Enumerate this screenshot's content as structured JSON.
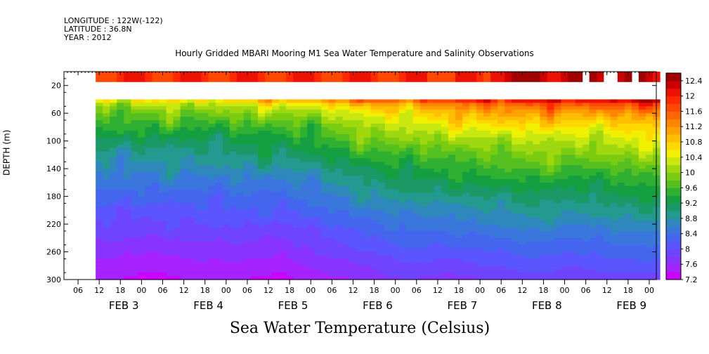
{
  "meta": {
    "longitude": "LONGITUDE : 122W(-122)",
    "latitude": "LATITUDE : 36.8N",
    "year": "YEAR : 2012"
  },
  "chart_data": {
    "type": "heatmap",
    "title": "Hourly Gridded MBARI Mooring M1 Sea Water Temperature and Salinity Observations",
    "xlabel": "Sea Water Temperature (Celsius)",
    "ylabel": "DEPTH (m)",
    "ylim": [
      300,
      0
    ],
    "y_ticks": [
      20,
      60,
      100,
      140,
      180,
      220,
      260,
      300
    ],
    "x_hour_ticks": [
      "06",
      "12",
      "18",
      "00",
      "06",
      "12",
      "18",
      "00",
      "06",
      "12",
      "18",
      "00",
      "06",
      "12",
      "18",
      "00",
      "06",
      "12",
      "18",
      "00",
      "06",
      "12",
      "18",
      "00",
      "06",
      "12",
      "18",
      "00"
    ],
    "x_day_labels": [
      "FEB  3",
      "FEB  4",
      "FEB  5",
      "FEB  6",
      "FEB  7",
      "FEB  8",
      "FEB  9"
    ],
    "x_range_hours": [
      "2012-02-03 02:00",
      "2012-02-10 02:00"
    ],
    "data_start_hours": 9,
    "colorbar": {
      "ticks": [
        "12.4",
        "12",
        "11.6",
        "11.2",
        "10.8",
        "10.4",
        "10",
        "9.6",
        "9.2",
        "8.8",
        "8.4",
        "8",
        "7.6",
        "7.2"
      ],
      "levels": [
        7.2,
        7.4,
        7.6,
        7.8,
        8.0,
        8.2,
        8.4,
        8.6,
        8.8,
        9.0,
        9.2,
        9.4,
        9.6,
        9.8,
        10.0,
        10.2,
        10.4,
        10.6,
        10.8,
        11.0,
        11.2,
        11.4,
        11.6,
        11.8,
        12.0,
        12.2,
        12.4,
        12.6
      ],
      "colors": [
        "#cc00ff",
        "#a622ff",
        "#8833ff",
        "#6e44ff",
        "#5a55ff",
        "#4466ee",
        "#3a77dd",
        "#2f88bb",
        "#23998f",
        "#1a9966",
        "#14a040",
        "#30b030",
        "#55c020",
        "#7acc10",
        "#a0d810",
        "#c8e810",
        "#f0f000",
        "#ffd800",
        "#ffbf00",
        "#ffa200",
        "#ff8400",
        "#ff6600",
        "#ff4800",
        "#ff2a00",
        "#ee1000",
        "#cc0000",
        "#a00000"
      ]
    },
    "surface_band": {
      "depth_m": 10,
      "approx_temperature": 11.9
    },
    "gap_depth_range_m": [
      15,
      40
    ],
    "profile_times_day": [
      0,
      0.5,
      1,
      1.5,
      2,
      2.5,
      3,
      3.5,
      4,
      4.5,
      5,
      5.5,
      6,
      6.5,
      7
    ],
    "temperature_at_40m": [
      10.6,
      10.5,
      10.6,
      10.5,
      10.7,
      10.8,
      11.0,
      11.4,
      11.6,
      11.8,
      12.0,
      12.1,
      12.0,
      12.2,
      12.3
    ],
    "temperature_at_300m": [
      7.3,
      7.4,
      7.3,
      7.4,
      7.4,
      7.3,
      7.5,
      7.6,
      7.8,
      7.7,
      7.8,
      7.9,
      7.8,
      7.9,
      7.9
    ]
  }
}
